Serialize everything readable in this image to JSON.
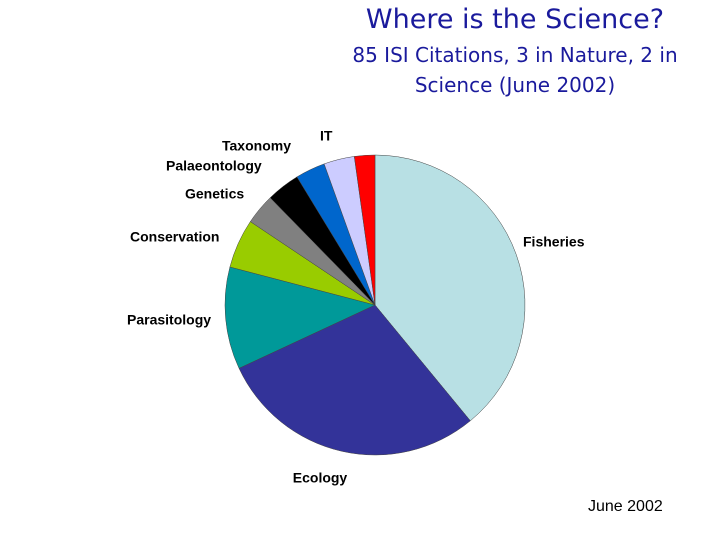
{
  "chart_data": {
    "type": "pie",
    "title": "Where is the Science?",
    "subtitle": "85 ISI Citations, 3 in Nature, 2 in Science (June 2002)",
    "footer": "June 2002",
    "categories": [
      "Fisheries",
      "Ecology",
      "Parasitology",
      "Conservation",
      "Genetics",
      "Palaeontology",
      "Taxonomy",
      "IT",
      null
    ],
    "values": [
      39,
      29,
      11,
      5.3,
      3.3,
      3.6,
      3.2,
      3.3,
      2.2
    ],
    "colors": [
      "#b8e0e4",
      "#333399",
      "#009999",
      "#99cc00",
      "#808080",
      "#000000",
      "#0066cc",
      "#ccccff",
      "#ff0000"
    ]
  }
}
